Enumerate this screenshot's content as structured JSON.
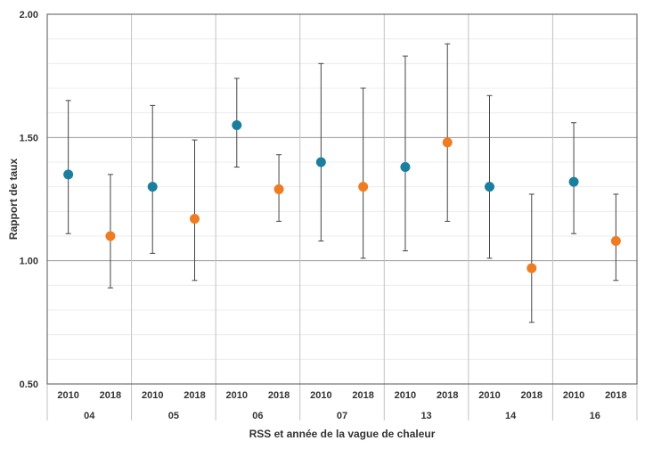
{
  "chart_data": {
    "type": "scatter",
    "subtype": "point-with-error-bars",
    "xlabel": "RSS et année de la vague de chaleur",
    "ylabel": "Rapport de taux",
    "ylim": [
      0.5,
      2.0
    ],
    "yticks": [
      "0.50",
      "1.00",
      "1.50",
      "2.00"
    ],
    "grid": "major horizontal at 1.00 and 1.50, minor every 0.10",
    "groups": [
      "04",
      "05",
      "06",
      "07",
      "13",
      "14",
      "16"
    ],
    "years": [
      "2010",
      "2018"
    ],
    "colors": {
      "2010": "#1a7f9e",
      "2018": "#f07c22"
    },
    "points": [
      {
        "group": "04",
        "year": "2010",
        "value": 1.35,
        "low": 1.11,
        "high": 1.65
      },
      {
        "group": "04",
        "year": "2018",
        "value": 1.1,
        "low": 0.89,
        "high": 1.35
      },
      {
        "group": "05",
        "year": "2010",
        "value": 1.3,
        "low": 1.03,
        "high": 1.63
      },
      {
        "group": "05",
        "year": "2018",
        "value": 1.17,
        "low": 0.92,
        "high": 1.49
      },
      {
        "group": "06",
        "year": "2010",
        "value": 1.55,
        "low": 1.38,
        "high": 1.74
      },
      {
        "group": "06",
        "year": "2018",
        "value": 1.29,
        "low": 1.16,
        "high": 1.43
      },
      {
        "group": "07",
        "year": "2010",
        "value": 1.4,
        "low": 1.08,
        "high": 1.8
      },
      {
        "group": "07",
        "year": "2018",
        "value": 1.3,
        "low": 1.01,
        "high": 1.7
      },
      {
        "group": "13",
        "year": "2010",
        "value": 1.38,
        "low": 1.04,
        "high": 1.83
      },
      {
        "group": "13",
        "year": "2018",
        "value": 1.48,
        "low": 1.16,
        "high": 1.88
      },
      {
        "group": "14",
        "year": "2010",
        "value": 1.3,
        "low": 1.01,
        "high": 1.67
      },
      {
        "group": "14",
        "year": "2018",
        "value": 0.97,
        "low": 0.75,
        "high": 1.27
      },
      {
        "group": "16",
        "year": "2010",
        "value": 1.32,
        "low": 1.11,
        "high": 1.56
      },
      {
        "group": "16",
        "year": "2018",
        "value": 1.08,
        "low": 0.92,
        "high": 1.27
      }
    ]
  }
}
